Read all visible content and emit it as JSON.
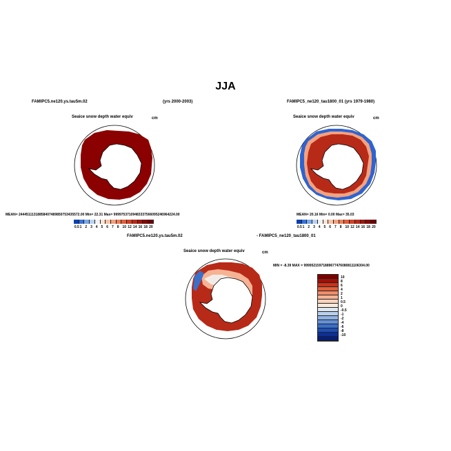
{
  "main_title": "JJA",
  "panel1": {
    "left_title": "FAMIPC5.ne120.ys.tau5m.02",
    "right_title": "(yrs 2000-2003)",
    "variable": "Seaice snow depth water equiv",
    "units": "cm",
    "stats": "MEAN= 24445111318858407489850753435572.00   Min=   22.31   Max= 99997537109483337566095246964224.00",
    "colorbar_labels": [
      "0.5",
      "1",
      "2",
      "3",
      "4",
      "5",
      "6",
      "7",
      "8",
      "10",
      "12",
      "14",
      "16",
      "18",
      "20"
    ]
  },
  "panel2": {
    "title": "FAMIPC5_ne120_tau1800_01 (yrs 1979-1980)",
    "variable": "Seaice snow depth water equiv",
    "units": "cm",
    "stats": "MEAN=   20.16   Min=    0.00   Max=   35.03",
    "colorbar_labels": [
      "0.5",
      "1",
      "2",
      "3",
      "4",
      "5",
      "6",
      "7",
      "8",
      "10",
      "12",
      "14",
      "16",
      "18",
      "20"
    ]
  },
  "diff": {
    "title_left": "FAMIPC5.ne120.ys.tau5m.02",
    "title_right": "- FAMIPC5_ne120_tau1800_01",
    "variable": "Seaice snow depth water equiv",
    "units": "cm",
    "stats": "MIN =   -8.39  MAX =  99995215971889677476080811106304.00",
    "colorbar_labels": [
      "10",
      "8",
      "6",
      "4",
      "2",
      "1",
      "0.5",
      "0",
      "-0.5",
      "-1",
      "-2",
      "-4",
      "-6",
      "-8",
      "-10"
    ]
  },
  "colors": {
    "seq_palette": [
      "#0a3fb0",
      "#3a72d8",
      "#7aa8e8",
      "#b8d2f0",
      "#f2f2f2",
      "#fbe3d4",
      "#f7c4a8",
      "#f3a27f",
      "#ec7f5a",
      "#e0603c",
      "#cf4127",
      "#b82a18",
      "#9c170d",
      "#830904",
      "#6b0000"
    ],
    "div_palette": [
      "#7a0000",
      "#a01008",
      "#c8321c",
      "#e0603c",
      "#f08c6a",
      "#f6b394",
      "#f9d3bd",
      "#fbe9dd",
      "#dde8f4",
      "#b8cfec",
      "#8fb2e2",
      "#6490d6",
      "#3a6fca",
      "#1f4eb5",
      "#0b2f9a",
      "#061d7a"
    ],
    "land": "#ffffff",
    "coast": "#000000"
  }
}
